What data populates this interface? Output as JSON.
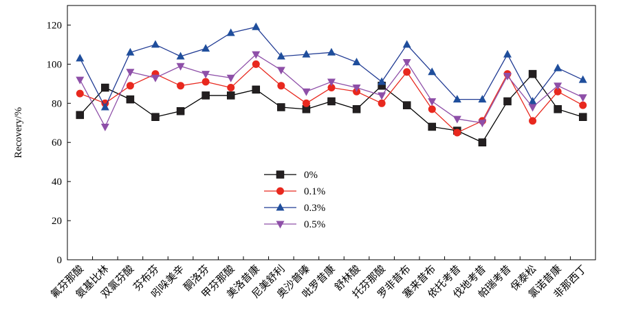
{
  "chart_data": {
    "type": "line",
    "ylabel": "Recovery/%",
    "xlabel": "",
    "ylim": [
      0,
      130
    ],
    "yticks": [
      0,
      20,
      40,
      60,
      80,
      100,
      120
    ],
    "grid": false,
    "legend_position": "center-left",
    "categories": [
      "氟芬那酸",
      "氨基比林",
      "双氯芬酸",
      "芬布芬",
      "吲哚美辛",
      "酮洛芬",
      "甲芬那酸",
      "美洛昔康",
      "尼美舒利",
      "奥沙普嗪",
      "吡罗昔康",
      "舒林酸",
      "托芬那酸",
      "罗非昔布",
      "塞来昔布",
      "依托考昔",
      "伐地考昔",
      "帕瑞考昔",
      "保泰松",
      "氯诺昔康",
      "非那西丁"
    ],
    "series": [
      {
        "name": "0%",
        "color": "#000000",
        "marker": "square",
        "marker_color": "#231f20",
        "values": [
          74,
          88,
          82,
          73,
          76,
          84,
          84,
          87,
          78,
          77,
          81,
          77,
          89,
          79,
          68,
          66,
          60,
          81,
          95,
          77,
          73
        ]
      },
      {
        "name": "0.1%",
        "color": "#e8281e",
        "marker": "circle",
        "marker_color": "#e8281e",
        "values": [
          85,
          80,
          89,
          95,
          89,
          91,
          88,
          100,
          89,
          80,
          88,
          86,
          80,
          96,
          77,
          65,
          71,
          95,
          71,
          86,
          79
        ]
      },
      {
        "name": "0.3%",
        "color": "#1f3a93",
        "marker": "triangle-up",
        "marker_color": "#1f4e9c",
        "values": [
          103,
          78,
          106,
          110,
          104,
          108,
          116,
          119,
          104,
          105,
          106,
          101,
          91,
          110,
          96,
          82,
          82,
          105,
          81,
          98,
          92
        ]
      },
      {
        "name": "0.5%",
        "color": "#8e4fa8",
        "marker": "triangle-down",
        "marker_color": "#8e4fa8",
        "values": [
          92,
          68,
          96,
          93,
          99,
          95,
          93,
          105,
          97,
          86,
          91,
          88,
          84,
          101,
          81,
          72,
          70,
          94,
          78,
          89,
          83
        ]
      }
    ]
  }
}
